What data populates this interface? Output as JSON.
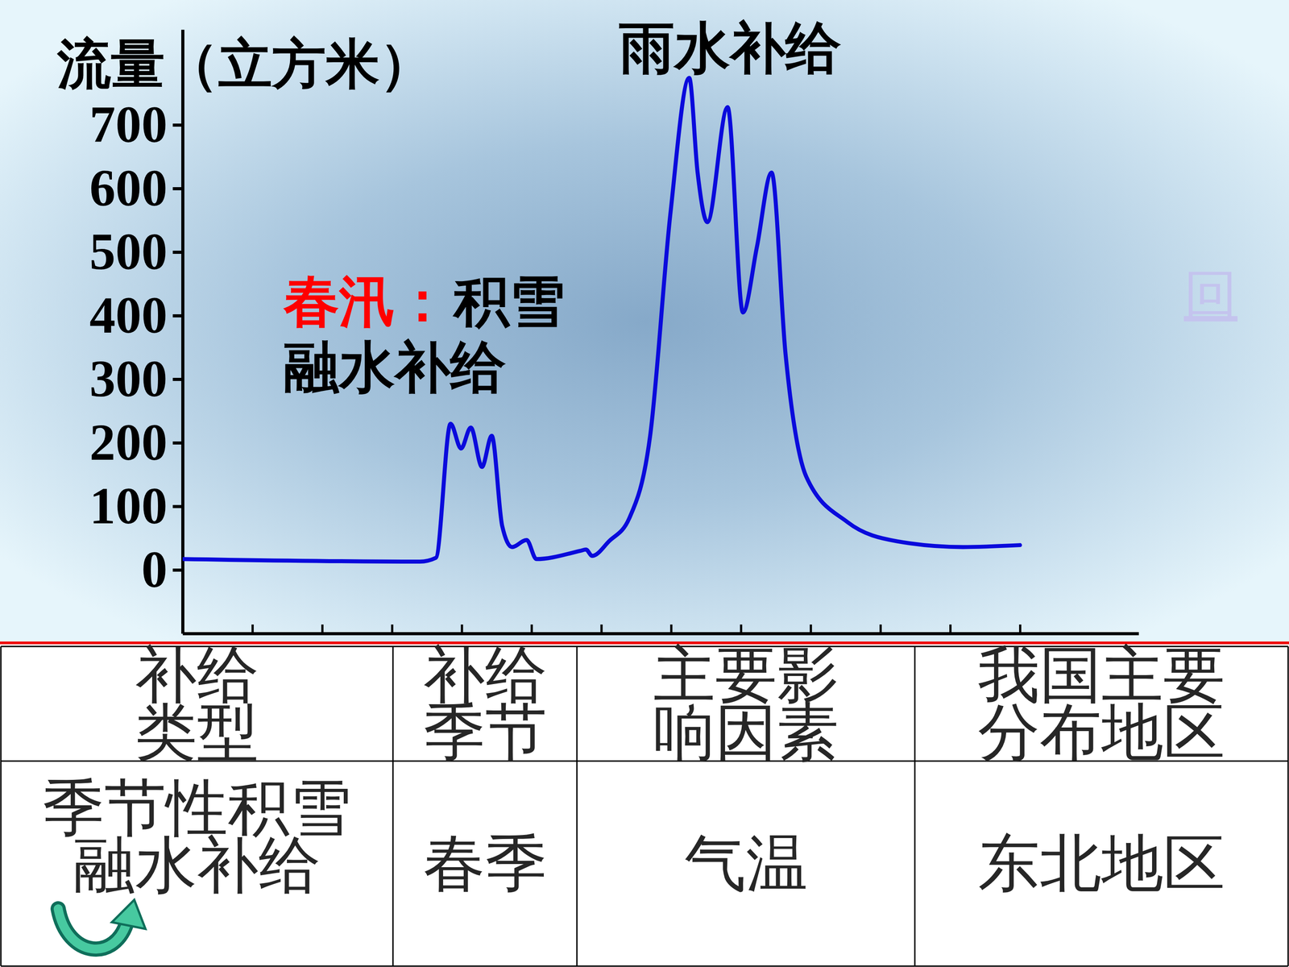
{
  "chart_data": {
    "type": "line",
    "y_label": "流量（立方米）",
    "annotations": [
      {
        "text": "雨水补给"
      },
      {
        "text": "春汛：",
        "color": "#ff0000"
      },
      {
        "text": "积雪融水补给"
      }
    ],
    "x": [
      0,
      3.4,
      3.63,
      3.84,
      3.99,
      4.13,
      4.29,
      4.43,
      4.58,
      4.72,
      4.93,
      5.07,
      5.7,
      5.78,
      5.87,
      6.11,
      6.4,
      6.7,
      6.99,
      7.26,
      7.38,
      7.52,
      7.81,
      8.03,
      8.23,
      8.44,
      8.64,
      8.94,
      9.53,
      10.24,
      11.18,
      12
    ],
    "series": [
      {
        "color": "#0a0adc",
        "values": [
          17,
          13,
          19,
          230,
          191,
          224,
          162,
          211,
          69,
          36,
          47,
          17,
          30,
          32,
          22,
          45,
          81,
          211,
          560,
          774,
          625,
          547,
          728,
          405,
          508,
          625,
          340,
          146,
          75,
          45,
          36,
          39
        ]
      }
    ],
    "xlim": [
      0,
      13.7
    ],
    "xticks": [
      1,
      2,
      3,
      4,
      5,
      6,
      7,
      8,
      9,
      10,
      11,
      12
    ],
    "ylim": [
      -100,
      850
    ],
    "yticks": [
      0,
      100,
      200,
      300,
      400,
      500,
      600,
      700
    ],
    "tick_labels": "y",
    "grid": false
  },
  "table": {
    "header": [
      "补给类型",
      "补给季节",
      "主要影响因素",
      "我国主要分布地区"
    ],
    "rows": [
      [
        "季节性积雪融水补给",
        "春季",
        "气温",
        "东北地区"
      ]
    ]
  },
  "link": "回"
}
